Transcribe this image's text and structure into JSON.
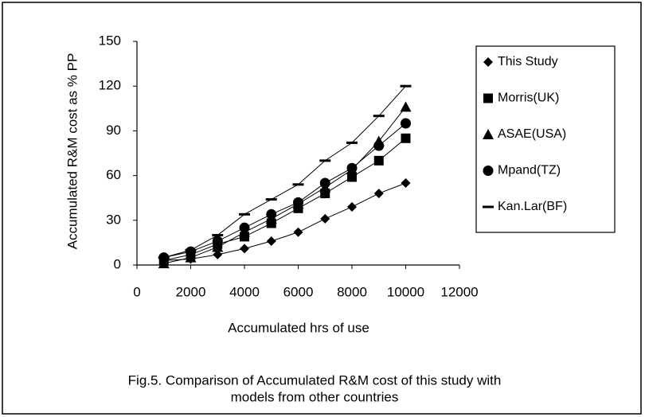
{
  "chart_data": {
    "type": "scatter",
    "xlabel": "Accumulated hrs of use",
    "ylabel": "Accumulated R&M cost as % PP",
    "caption": [
      "Fig.5. Comparison of Accumulated R&M cost of this study with",
      "models from other countries"
    ],
    "x": [
      1000,
      2000,
      3000,
      4000,
      5000,
      6000,
      7000,
      8000,
      9000,
      10000
    ],
    "series": [
      {
        "name": "This Study",
        "marker": "diamond",
        "color": "#000000",
        "values": [
          3,
          4,
          7,
          11,
          16,
          22,
          31,
          39,
          48,
          55
        ]
      },
      {
        "name": "Morris(UK)",
        "marker": "square",
        "color": "#000000",
        "values": [
          3,
          7,
          14,
          19,
          28,
          38,
          48,
          59,
          70,
          85
        ]
      },
      {
        "name": "ASAE(USA)",
        "marker": "triangle",
        "color": "#000000",
        "values": [
          1,
          5,
          12,
          22,
          31,
          41,
          52,
          64,
          83,
          106
        ]
      },
      {
        "name": "Mpand(TZ)",
        "marker": "circle",
        "color": "#000000",
        "values": [
          5,
          9,
          16,
          25,
          34,
          42,
          55,
          65,
          80,
          95
        ]
      },
      {
        "name": "Kan.Lar(BF)",
        "marker": "dash",
        "color": "#000000",
        "values": [
          5,
          10,
          20,
          34,
          44,
          54,
          70,
          82,
          100,
          120
        ]
      }
    ],
    "xlim": [
      0,
      12000
    ],
    "xticks": [
      0,
      2000,
      4000,
      6000,
      8000,
      10000,
      12000
    ],
    "ylim": [
      0,
      150
    ],
    "yticks": [
      0,
      30,
      60,
      90,
      120,
      150
    ],
    "grid": false,
    "legend": "right"
  }
}
